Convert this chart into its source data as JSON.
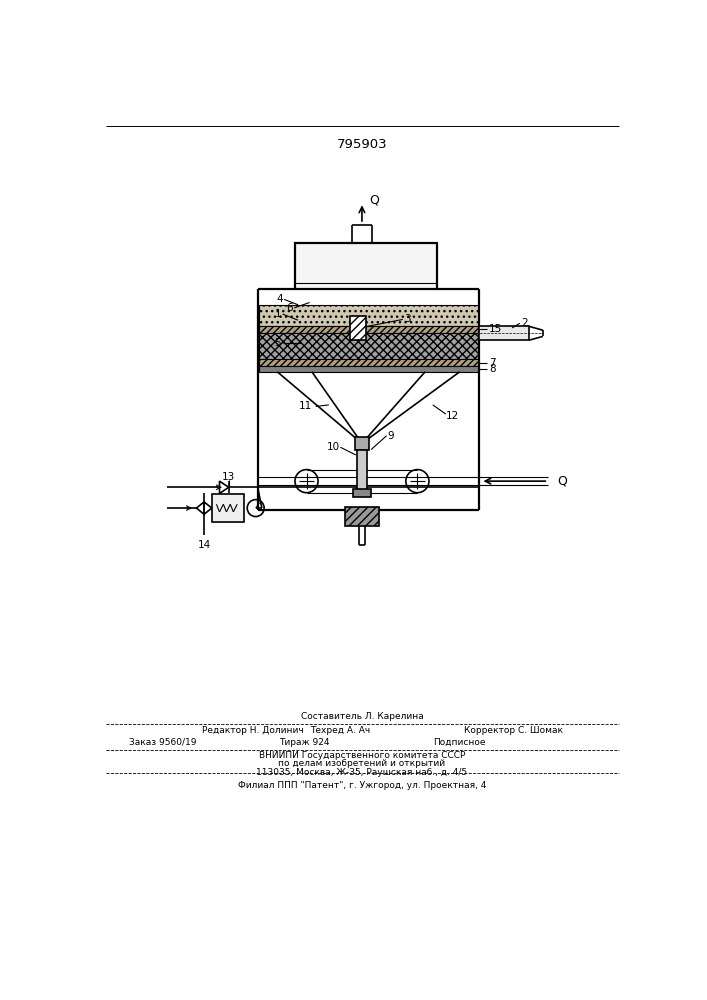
{
  "title": "795903",
  "bg_color": "#ffffff",
  "line_color": "#000000",
  "footer": {
    "line1": "Составитель Л. Карелина",
    "line2_left": "Редактор Н. Долинич",
    "line2_mid": "Техред А. Ач",
    "line2_right": "Корректор С. Шомак",
    "line3_left": "Заказ 9560/19",
    "line3_mid": "Тираж 924",
    "line3_right": "Подписное",
    "line4": "ВНИИПИ Государственного комитета СССР",
    "line5": "по делам изобретений и открытий",
    "line6": "113035, Москва, Ж-35, Раушская наб., д. 4/5",
    "line7": "Филиал ППП \"Патент\", г. Ужгород, ул. Проектная, 4"
  }
}
